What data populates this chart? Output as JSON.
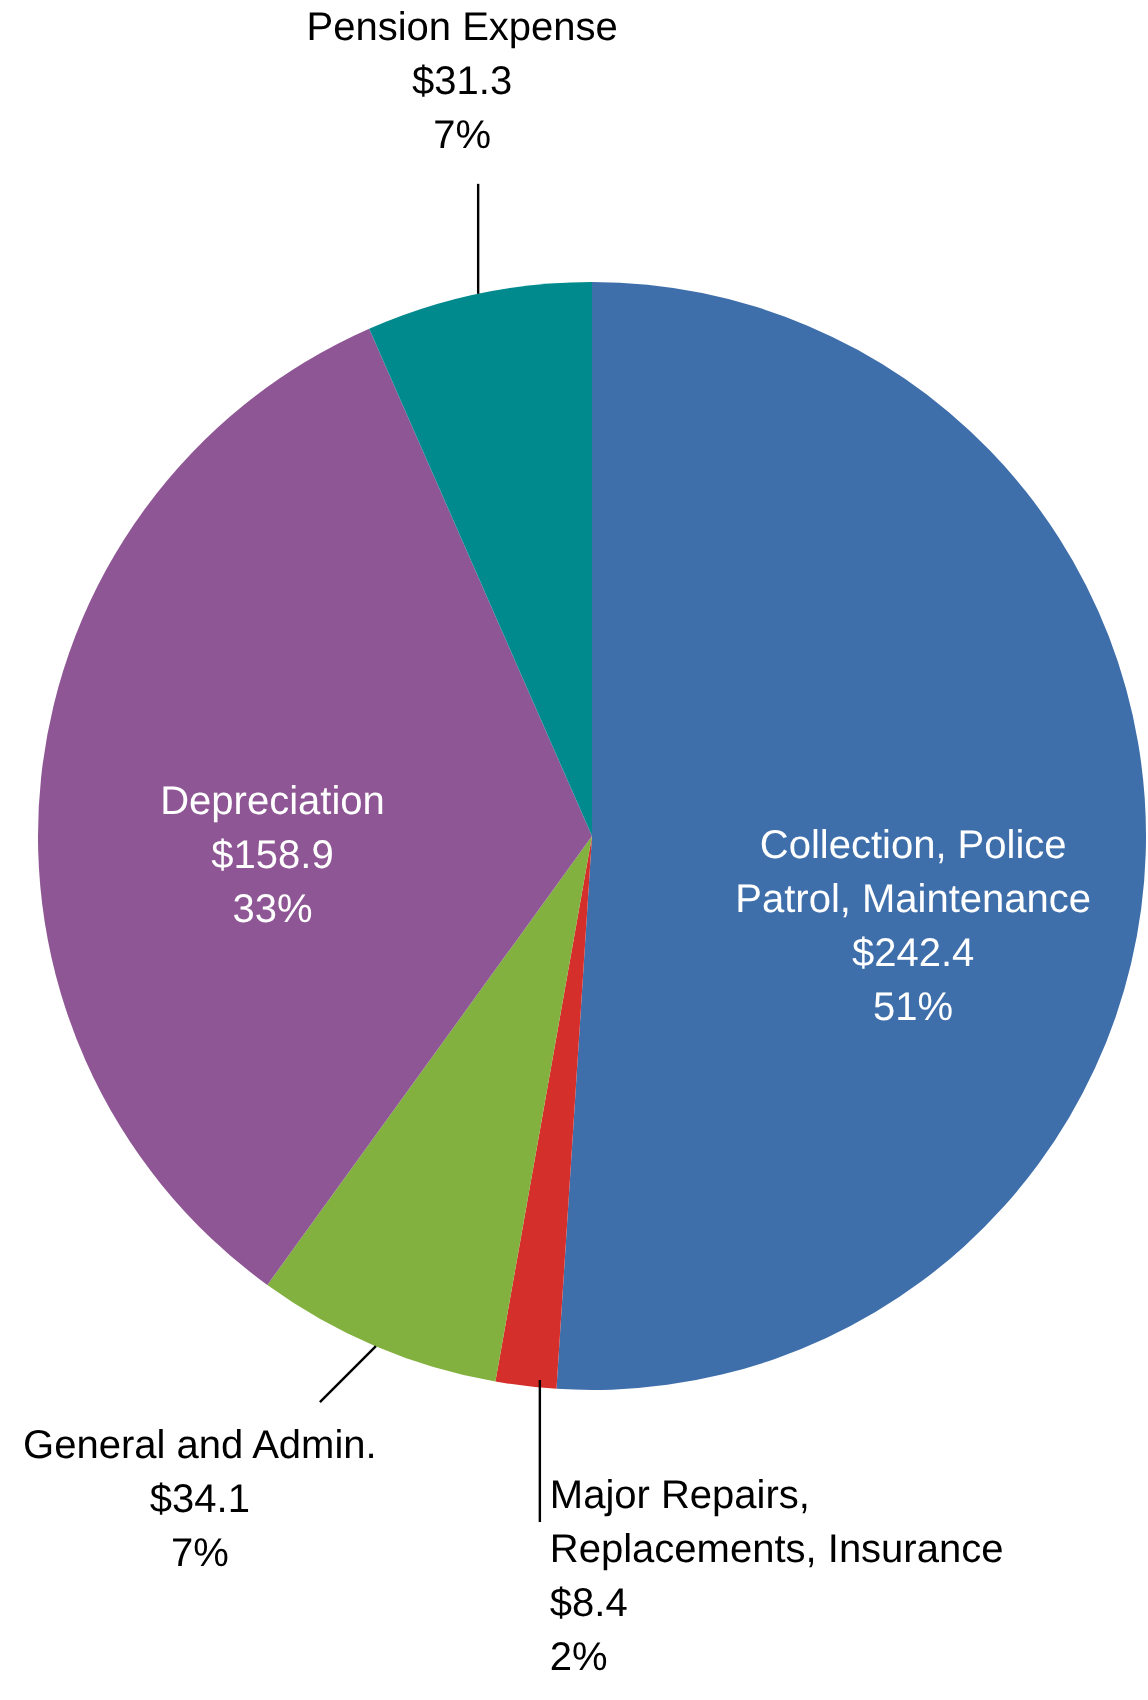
{
  "chart_data": {
    "type": "pie",
    "categories": [
      "Collection, Police Patrol, Maintenance",
      "Major Repairs, Replacements, Insurance",
      "General and Admin.",
      "Depreciation",
      "Pension Expense"
    ],
    "values": [
      242.4,
      8.4,
      34.1,
      158.9,
      31.3
    ],
    "colors": [
      "#3f6fab",
      "#d42f2a",
      "#82b140",
      "#8e5694",
      "#008a8e"
    ],
    "value_labels": [
      "$242.4\n51%",
      "$8.4\n2%",
      "$34.1\n7%",
      "$158.9\n33%",
      "$31.3\n7%"
    ]
  }
}
